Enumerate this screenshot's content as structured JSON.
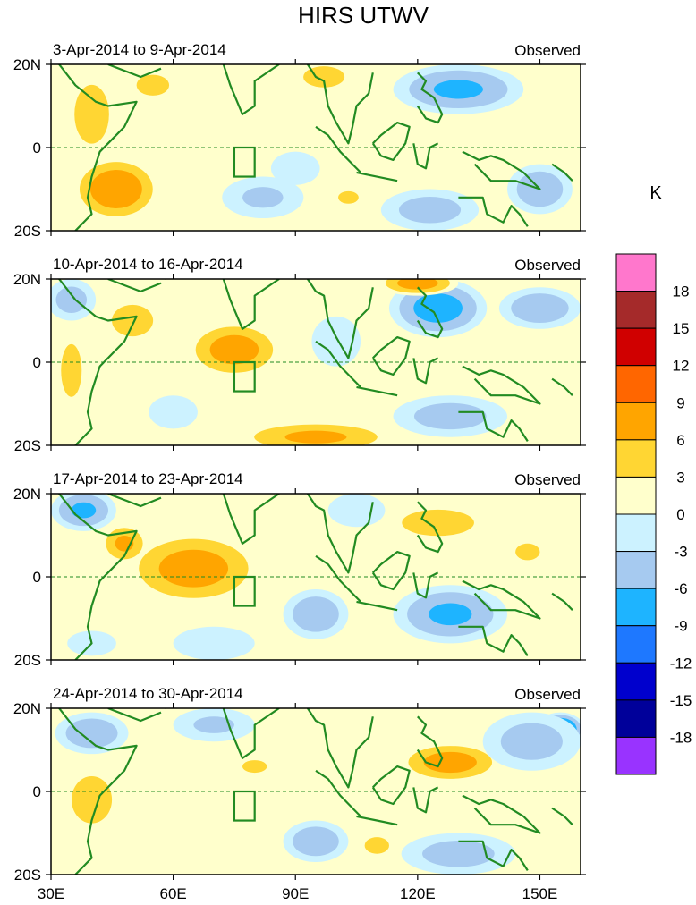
{
  "chart_data": {
    "type": "heatmap",
    "title": "HIRS UTWV",
    "units": "K",
    "x_ticks": [
      "30E",
      "60E",
      "90E",
      "120E",
      "150E"
    ],
    "x_tick_values": [
      30,
      60,
      90,
      120,
      150
    ],
    "xlim": [
      30,
      160
    ],
    "y_ticks": [
      "20N",
      "0",
      "20S"
    ],
    "y_tick_values": [
      20,
      0,
      -20
    ],
    "ylim": [
      -20,
      20
    ],
    "colorbar": {
      "labels": [
        "18",
        "15",
        "12",
        "9",
        "6",
        "3",
        "0",
        "-3",
        "-6",
        "-9",
        "-12",
        "-15",
        "-18"
      ],
      "colors": [
        "#ff77cc",
        "#a52a2a",
        "#d00000",
        "#ff6600",
        "#ffa500",
        "#ffd633",
        "#ffffcc",
        "#ccf2ff",
        "#a6caf0",
        "#1eb4ff",
        "#1e78ff",
        "#0000cd",
        "#00009a",
        "#9933ff"
      ]
    },
    "box_region": {
      "lon": [
        75,
        80
      ],
      "lat": [
        -7,
        0
      ]
    },
    "panels": [
      {
        "period": "3-Apr-2014 to 9-Apr-2014",
        "tag": "Observed",
        "blobs": [
          {
            "lon": 46,
            "lat": -10,
            "rx": 11,
            "ry": 8,
            "v": 9
          },
          {
            "lon": 40,
            "lat": 8,
            "rx": 6,
            "ry": 10,
            "v": 6
          },
          {
            "lon": 55,
            "lat": 15,
            "rx": 8,
            "ry": 5,
            "v": 4
          },
          {
            "lon": 73,
            "lat": 17,
            "rx": 12,
            "ry": 5,
            "v": 3
          },
          {
            "lon": 97,
            "lat": 17,
            "rx": 8,
            "ry": 4,
            "v": 5
          },
          {
            "lon": 130,
            "lat": 14,
            "rx": 16,
            "ry": 6,
            "v": -7
          },
          {
            "lon": 150,
            "lat": -10,
            "rx": 8,
            "ry": 6,
            "v": -6
          },
          {
            "lon": 123,
            "lat": -15,
            "rx": 12,
            "ry": 5,
            "v": -5
          },
          {
            "lon": 82,
            "lat": -12,
            "rx": 10,
            "ry": 5,
            "v": -4
          },
          {
            "lon": 103,
            "lat": -12,
            "rx": 5,
            "ry": 3,
            "v": 4
          },
          {
            "lon": 90,
            "lat": -5,
            "rx": 6,
            "ry": 4,
            "v": -2
          }
        ]
      },
      {
        "period": "10-Apr-2014 to 16-Apr-2014",
        "tag": "Observed",
        "blobs": [
          {
            "lon": 75,
            "lat": 3,
            "rx": 12,
            "ry": 7,
            "v": 8
          },
          {
            "lon": 50,
            "lat": 10,
            "rx": 8,
            "ry": 6,
            "v": 5
          },
          {
            "lon": 35,
            "lat": -2,
            "rx": 4,
            "ry": 10,
            "v": 5
          },
          {
            "lon": 125,
            "lat": 13,
            "rx": 12,
            "ry": 7,
            "v": -8
          },
          {
            "lon": 150,
            "lat": 13,
            "rx": 10,
            "ry": 5,
            "v": -6
          },
          {
            "lon": 120,
            "lat": 19,
            "rx": 10,
            "ry": 3,
            "v": 8
          },
          {
            "lon": 95,
            "lat": -18,
            "rx": 20,
            "ry": 4,
            "v": 7
          },
          {
            "lon": 128,
            "lat": -13,
            "rx": 14,
            "ry": 5,
            "v": -5
          },
          {
            "lon": 35,
            "lat": 15,
            "rx": 6,
            "ry": 5,
            "v": -5
          },
          {
            "lon": 100,
            "lat": 5,
            "rx": 6,
            "ry": 6,
            "v": -3
          },
          {
            "lon": 60,
            "lat": -12,
            "rx": 6,
            "ry": 4,
            "v": -3
          }
        ]
      },
      {
        "period": "17-Apr-2014 to 23-Apr-2014",
        "tag": "Observed",
        "blobs": [
          {
            "lon": 65,
            "lat": 2,
            "rx": 17,
            "ry": 9,
            "v": 8
          },
          {
            "lon": 48,
            "lat": 8,
            "rx": 6,
            "ry": 5,
            "v": 7
          },
          {
            "lon": 125,
            "lat": 13,
            "rx": 14,
            "ry": 5,
            "v": 5
          },
          {
            "lon": 147,
            "lat": 6,
            "rx": 6,
            "ry": 4,
            "v": 4
          },
          {
            "lon": 38,
            "lat": 16,
            "rx": 8,
            "ry": 5,
            "v": -7
          },
          {
            "lon": 95,
            "lat": -9,
            "rx": 8,
            "ry": 6,
            "v": -6
          },
          {
            "lon": 128,
            "lat": -9,
            "rx": 14,
            "ry": 7,
            "v": -7
          },
          {
            "lon": 105,
            "lat": 16,
            "rx": 7,
            "ry": 4,
            "v": -3
          },
          {
            "lon": 70,
            "lat": -16,
            "rx": 10,
            "ry": 4,
            "v": -3
          },
          {
            "lon": 40,
            "lat": -16,
            "rx": 6,
            "ry": 3,
            "v": -3
          }
        ]
      },
      {
        "period": "24-Apr-2014 to 30-Apr-2014",
        "tag": "Observed",
        "blobs": [
          {
            "lon": 128,
            "lat": 7,
            "rx": 13,
            "ry": 5,
            "v": 8
          },
          {
            "lon": 40,
            "lat": -2,
            "rx": 7,
            "ry": 8,
            "v": 6
          },
          {
            "lon": 155,
            "lat": 15,
            "rx": 6,
            "ry": 4,
            "v": -11
          },
          {
            "lon": 148,
            "lat": 12,
            "rx": 12,
            "ry": 7,
            "v": -5
          },
          {
            "lon": 40,
            "lat": 14,
            "rx": 9,
            "ry": 5,
            "v": -6
          },
          {
            "lon": 70,
            "lat": 16,
            "rx": 10,
            "ry": 4,
            "v": -4
          },
          {
            "lon": 95,
            "lat": -12,
            "rx": 8,
            "ry": 5,
            "v": -6
          },
          {
            "lon": 130,
            "lat": -15,
            "rx": 14,
            "ry": 5,
            "v": -5
          },
          {
            "lon": 80,
            "lat": 6,
            "rx": 6,
            "ry": 3,
            "v": 4
          },
          {
            "lon": 110,
            "lat": -13,
            "rx": 6,
            "ry": 4,
            "v": 4
          },
          {
            "lon": 60,
            "lat": -8,
            "rx": 10,
            "ry": 4,
            "v": 3
          }
        ]
      }
    ]
  }
}
